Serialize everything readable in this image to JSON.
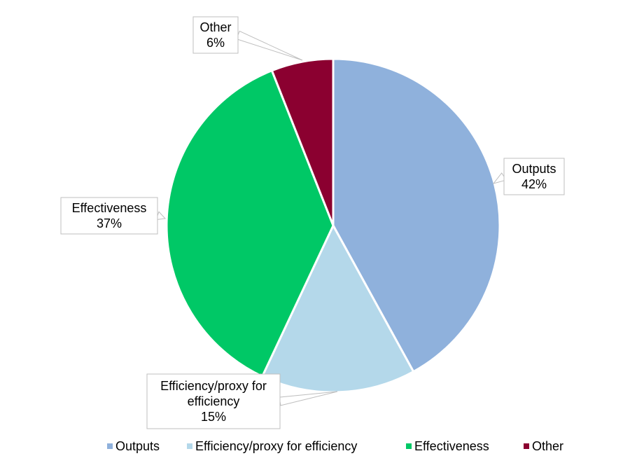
{
  "chart_data": {
    "type": "pie",
    "start_angle_deg": 0,
    "direction": "clockwise",
    "slices": [
      {
        "name": "Outputs",
        "value": 42,
        "label": "Outputs\n42%",
        "color": "#8fb1dc"
      },
      {
        "name": "Efficiency/proxy for efficiency",
        "value": 15,
        "label": "Efficiency/proxy for\nefficiency\n15%",
        "color": "#b4d8ea"
      },
      {
        "name": "Effectiveness",
        "value": 37,
        "label": "Effectiveness\n37%",
        "color": "#00c866"
      },
      {
        "name": "Other",
        "value": 6,
        "label": "Other\n6%",
        "color": "#8b0030"
      }
    ],
    "legend": {
      "position": "bottom",
      "entries": [
        "Outputs",
        "Efficiency/proxy for efficiency",
        "Effectiveness",
        "Other"
      ]
    },
    "title": ""
  }
}
